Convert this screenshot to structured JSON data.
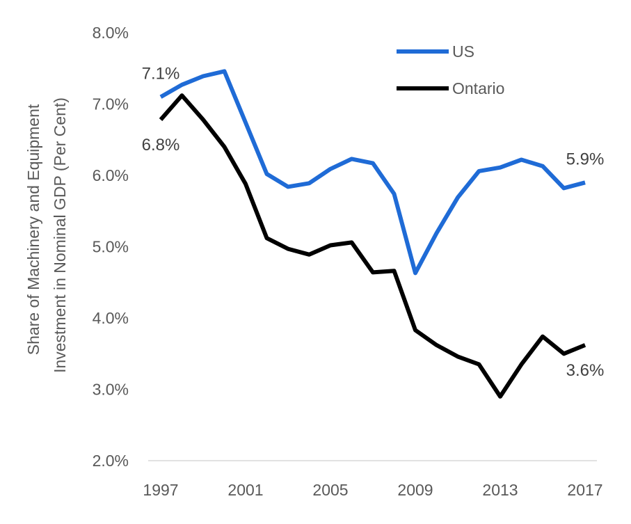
{
  "chart_data": {
    "type": "line",
    "title": "",
    "ylabel_lines": [
      "Share of Machinery and Equipment",
      "Investment in Nominal GDP (Per Cent)"
    ],
    "xlabel": "",
    "x": [
      1997,
      1998,
      1999,
      2000,
      2001,
      2002,
      2003,
      2004,
      2005,
      2006,
      2007,
      2008,
      2009,
      2010,
      2011,
      2012,
      2013,
      2014,
      2015,
      2016,
      2017
    ],
    "x_ticks": [
      "1997",
      "2001",
      "2005",
      "2009",
      "2013",
      "2017"
    ],
    "y_ticks": [
      "2.0%",
      "3.0%",
      "4.0%",
      "5.0%",
      "6.0%",
      "7.0%",
      "8.0%"
    ],
    "ylim": [
      2.0,
      8.0
    ],
    "grid": false,
    "legend_position": "top-right",
    "series": [
      {
        "name": "US",
        "color": "#1F6BD6",
        "values": [
          7.1,
          7.27,
          7.39,
          7.46,
          6.74,
          6.02,
          5.84,
          5.89,
          6.09,
          6.23,
          6.17,
          5.74,
          4.63,
          5.19,
          5.69,
          6.06,
          6.11,
          6.22,
          6.13,
          5.82,
          5.9
        ],
        "labels": [
          {
            "index": 0,
            "text": "7.1%",
            "position": "above"
          },
          {
            "index": 20,
            "text": "5.9%",
            "position": "above"
          }
        ]
      },
      {
        "name": "Ontario",
        "color": "#000000",
        "values": [
          6.78,
          7.12,
          6.78,
          6.4,
          5.88,
          5.12,
          4.97,
          4.89,
          5.02,
          5.06,
          4.64,
          4.66,
          3.83,
          3.62,
          3.46,
          3.35,
          2.9,
          3.35,
          3.74,
          3.5,
          3.62
        ],
        "labels": [
          {
            "index": 0,
            "text": "6.8%",
            "position": "below"
          },
          {
            "index": 20,
            "text": "3.6%",
            "position": "below"
          }
        ]
      }
    ]
  }
}
